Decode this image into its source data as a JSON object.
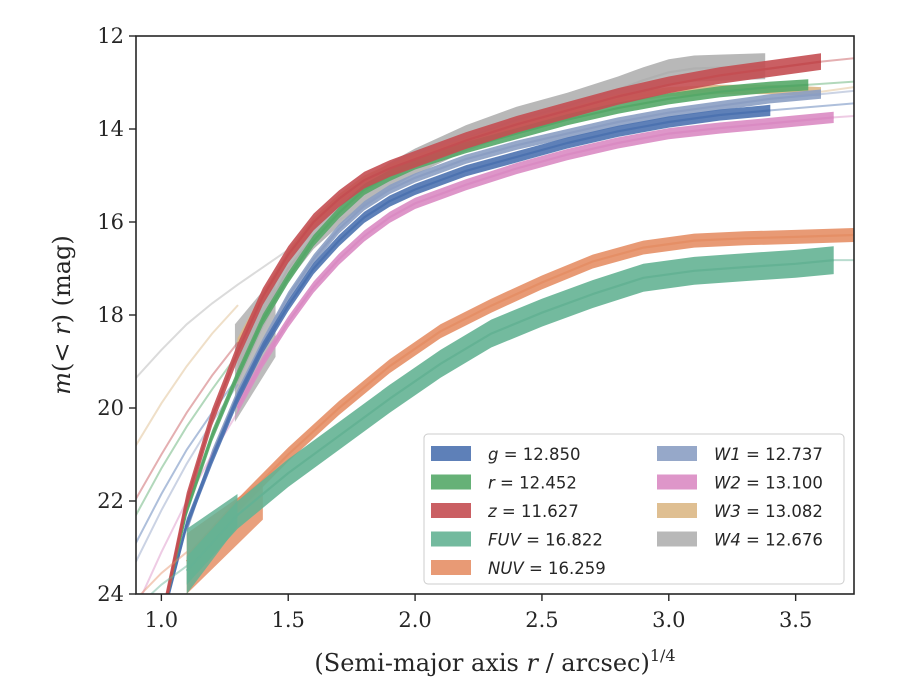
{
  "chart_data": {
    "type": "line",
    "xlabel": {
      "prefix": "(Semi-major axis ",
      "var": "r",
      "suffix": " / arcsec)",
      "sup": "1/4"
    },
    "ylabel": {
      "prefix": "m",
      "middle": "(< ",
      "var": "r",
      "suffix": ") (mag)"
    },
    "xlim": [
      0.9,
      3.73
    ],
    "ylim": [
      24,
      12
    ],
    "y_inverted": true,
    "xticks": [
      "1.0",
      "1.5",
      "2.0",
      "2.5",
      "3.0",
      "3.5"
    ],
    "yticks": [
      "12",
      "14",
      "16",
      "18",
      "20",
      "22",
      "24"
    ],
    "legend_position": "lower-right",
    "legend_columns": 2,
    "series": [
      {
        "name": "g",
        "value_text": " = 12.850",
        "color": "#4c72b0",
        "extrap": [
          [
            0.9,
            22.9
          ],
          [
            1.0,
            21.85
          ],
          [
            1.1,
            20.9
          ],
          [
            1.2,
            20.1
          ],
          [
            1.3,
            19.35
          ]
        ],
        "data": [
          [
            1.0,
            24.6
          ],
          [
            1.1,
            22.5
          ],
          [
            1.2,
            21.1
          ],
          [
            1.3,
            19.8
          ],
          [
            1.4,
            18.7
          ],
          [
            1.5,
            17.8
          ],
          [
            1.6,
            17.0
          ],
          [
            1.7,
            16.4
          ],
          [
            1.8,
            15.9
          ],
          [
            1.9,
            15.55
          ],
          [
            2.0,
            15.3
          ],
          [
            2.2,
            14.9
          ],
          [
            2.4,
            14.6
          ],
          [
            2.6,
            14.3
          ],
          [
            2.8,
            14.05
          ],
          [
            3.0,
            13.85
          ],
          [
            3.2,
            13.7
          ],
          [
            3.4,
            13.6
          ]
        ],
        "extrap_out": [
          [
            3.4,
            13.6
          ],
          [
            3.73,
            13.45
          ]
        ],
        "band": 0.12
      },
      {
        "name": "r",
        "value_text": " = 12.452",
        "color": "#55a868",
        "extrap": [
          [
            0.9,
            22.3
          ],
          [
            1.0,
            21.3
          ],
          [
            1.1,
            20.4
          ],
          [
            1.2,
            19.6
          ],
          [
            1.3,
            18.85
          ]
        ],
        "data": [
          [
            1.0,
            24.6
          ],
          [
            1.1,
            22.2
          ],
          [
            1.2,
            20.6
          ],
          [
            1.3,
            19.3
          ],
          [
            1.4,
            18.1
          ],
          [
            1.5,
            17.2
          ],
          [
            1.6,
            16.4
          ],
          [
            1.7,
            15.8
          ],
          [
            1.8,
            15.3
          ],
          [
            1.9,
            15.0
          ],
          [
            2.0,
            14.75
          ],
          [
            2.2,
            14.4
          ],
          [
            2.4,
            14.1
          ],
          [
            2.6,
            13.8
          ],
          [
            2.8,
            13.55
          ],
          [
            3.0,
            13.35
          ],
          [
            3.2,
            13.2
          ],
          [
            3.4,
            13.1
          ],
          [
            3.55,
            13.05
          ]
        ],
        "extrap_out": [
          [
            3.55,
            13.05
          ],
          [
            3.73,
            12.98
          ]
        ],
        "band": 0.12
      },
      {
        "name": "z",
        "value_text": " = 11.627",
        "color": "#c44e52",
        "extrap": [
          [
            0.9,
            21.95
          ],
          [
            1.0,
            21.0
          ],
          [
            1.1,
            20.1
          ],
          [
            1.2,
            19.3
          ],
          [
            1.3,
            18.6
          ]
        ],
        "data": [
          [
            1.0,
            24.6
          ],
          [
            1.1,
            22.0
          ],
          [
            1.2,
            20.2
          ],
          [
            1.3,
            18.8
          ],
          [
            1.4,
            17.6
          ],
          [
            1.5,
            16.7
          ],
          [
            1.6,
            16.0
          ],
          [
            1.7,
            15.5
          ],
          [
            1.8,
            15.1
          ],
          [
            1.9,
            14.85
          ],
          [
            2.0,
            14.65
          ],
          [
            2.2,
            14.25
          ],
          [
            2.4,
            13.9
          ],
          [
            2.6,
            13.6
          ],
          [
            2.8,
            13.3
          ],
          [
            3.0,
            13.05
          ],
          [
            3.2,
            12.85
          ],
          [
            3.4,
            12.7
          ],
          [
            3.6,
            12.55
          ]
        ],
        "extrap_out": [
          [
            3.6,
            12.55
          ],
          [
            3.73,
            12.48
          ]
        ],
        "band": 0.18
      },
      {
        "name": "FUV",
        "value_text": " = 16.822",
        "color": "#64b294",
        "extrap": [
          [
            0.92,
            24.2
          ],
          [
            1.0,
            23.8
          ],
          [
            1.1,
            23.4
          ]
        ],
        "data": [
          [
            1.1,
            23.5
          ],
          [
            1.3,
            22.3
          ],
          [
            1.5,
            21.4
          ],
          [
            1.7,
            20.6
          ],
          [
            1.9,
            19.8
          ],
          [
            2.1,
            19.05
          ],
          [
            2.3,
            18.4
          ],
          [
            2.5,
            17.95
          ],
          [
            2.7,
            17.55
          ],
          [
            2.9,
            17.2
          ],
          [
            3.1,
            17.05
          ],
          [
            3.3,
            16.97
          ],
          [
            3.5,
            16.9
          ],
          [
            3.65,
            16.82
          ]
        ],
        "extrap_out": [
          [
            3.65,
            16.82
          ],
          [
            3.73,
            16.82
          ]
        ],
        "band": 0.3,
        "wedge": {
          "x": [
            1.1,
            1.3
          ],
          "top": [
            22.6,
            21.85
          ],
          "bottom": [
            24.0,
            22.55
          ]
        }
      },
      {
        "name": "NUV",
        "value_text": " = 16.259",
        "color": "#e58f66",
        "extrap": [
          [
            0.92,
            24.0
          ],
          [
            1.0,
            23.55
          ],
          [
            1.1,
            23.1
          ]
        ],
        "data": [
          [
            1.1,
            23.3
          ],
          [
            1.3,
            22.1
          ],
          [
            1.5,
            21.0
          ],
          [
            1.7,
            20.0
          ],
          [
            1.9,
            19.1
          ],
          [
            2.1,
            18.35
          ],
          [
            2.3,
            17.8
          ],
          [
            2.5,
            17.3
          ],
          [
            2.7,
            16.85
          ],
          [
            2.9,
            16.55
          ],
          [
            3.1,
            16.4
          ],
          [
            3.3,
            16.35
          ],
          [
            3.5,
            16.32
          ],
          [
            3.73,
            16.28
          ]
        ],
        "extrap_out": [],
        "band": 0.15,
        "wedge": {
          "x": [
            1.1,
            1.4
          ],
          "top": [
            22.7,
            21.55
          ],
          "bottom": [
            24.0,
            22.4
          ]
        }
      },
      {
        "name": "W1",
        "value_text": " = 12.737",
        "color": "#8b9ec3",
        "extrap": [
          [
            0.9,
            23.3
          ],
          [
            1.0,
            22.2
          ],
          [
            1.1,
            21.2
          ],
          [
            1.2,
            20.3
          ],
          [
            1.3,
            19.5
          ]
        ],
        "data": [
          [
            1.1,
            22.6
          ],
          [
            1.2,
            21.0
          ],
          [
            1.3,
            19.7
          ],
          [
            1.4,
            18.6
          ],
          [
            1.5,
            17.6
          ],
          [
            1.6,
            16.8
          ],
          [
            1.7,
            16.15
          ],
          [
            1.8,
            15.65
          ],
          [
            1.9,
            15.3
          ],
          [
            2.0,
            15.05
          ],
          [
            2.2,
            14.65
          ],
          [
            2.4,
            14.35
          ],
          [
            2.6,
            14.1
          ],
          [
            2.8,
            13.85
          ],
          [
            3.0,
            13.65
          ],
          [
            3.2,
            13.5
          ],
          [
            3.4,
            13.35
          ],
          [
            3.6,
            13.25
          ]
        ],
        "extrap_out": [
          [
            3.6,
            13.25
          ],
          [
            3.73,
            13.18
          ]
        ],
        "band": 0.1
      },
      {
        "name": "W2",
        "value_text": " = 13.100",
        "color": "#da8bc3",
        "extrap": [
          [
            0.9,
            24.3
          ],
          [
            1.0,
            23.1
          ],
          [
            1.1,
            22.0
          ],
          [
            1.2,
            21.0
          ],
          [
            1.3,
            20.1
          ]
        ],
        "data": [
          [
            1.3,
            20.0
          ],
          [
            1.4,
            19.0
          ],
          [
            1.5,
            18.15
          ],
          [
            1.6,
            17.4
          ],
          [
            1.7,
            16.8
          ],
          [
            1.8,
            16.3
          ],
          [
            1.9,
            15.9
          ],
          [
            2.0,
            15.6
          ],
          [
            2.2,
            15.2
          ],
          [
            2.4,
            14.85
          ],
          [
            2.6,
            14.55
          ],
          [
            2.8,
            14.3
          ],
          [
            3.0,
            14.1
          ],
          [
            3.2,
            13.98
          ],
          [
            3.4,
            13.88
          ],
          [
            3.65,
            13.75
          ]
        ],
        "extrap_out": [
          [
            3.65,
            13.75
          ],
          [
            3.73,
            13.72
          ]
        ],
        "band": 0.12
      },
      {
        "name": "W3",
        "value_text": " = 13.082",
        "color": "#dbb886",
        "extrap": [
          [
            0.9,
            20.8
          ],
          [
            1.0,
            19.9
          ],
          [
            1.1,
            19.1
          ],
          [
            1.2,
            18.4
          ],
          [
            1.3,
            17.8
          ]
        ],
        "data": [
          [
            1.3,
            18.6
          ],
          [
            1.4,
            17.6
          ],
          [
            1.5,
            16.7
          ],
          [
            1.6,
            16.0
          ],
          [
            1.7,
            15.5
          ],
          [
            1.8,
            15.1
          ],
          [
            1.9,
            14.85
          ],
          [
            2.0,
            14.65
          ],
          [
            2.2,
            14.3
          ],
          [
            2.4,
            13.95
          ],
          [
            2.6,
            13.65
          ],
          [
            2.8,
            13.35
          ],
          [
            3.0,
            13.2
          ],
          [
            3.2,
            13.15
          ],
          [
            3.4,
            13.15
          ],
          [
            3.6,
            13.2
          ]
        ],
        "extrap_out": [
          [
            3.6,
            13.2
          ],
          [
            3.73,
            13.1
          ]
        ],
        "band": 0.1
      },
      {
        "name": "W4",
        "value_text": " = 12.676",
        "color": "#b0b0b0",
        "extrap": [
          [
            0.9,
            19.35
          ],
          [
            1.0,
            18.75
          ],
          [
            1.1,
            18.2
          ],
          [
            1.2,
            17.75
          ],
          [
            1.3,
            17.35
          ],
          [
            1.5,
            16.6
          ],
          [
            1.7,
            15.95
          ],
          [
            1.85,
            15.55
          ]
        ],
        "data": [
          [
            1.3,
            19.2
          ],
          [
            1.4,
            18.0
          ],
          [
            1.5,
            17.0
          ],
          [
            1.6,
            16.3
          ],
          [
            1.7,
            15.8
          ],
          [
            1.8,
            15.35
          ],
          [
            1.9,
            15.0
          ],
          [
            2.0,
            14.7
          ],
          [
            2.2,
            14.2
          ],
          [
            2.4,
            13.8
          ],
          [
            2.6,
            13.5
          ],
          [
            2.8,
            13.15
          ],
          [
            2.9,
            12.95
          ],
          [
            3.0,
            12.78
          ],
          [
            3.1,
            12.7
          ],
          [
            3.2,
            12.68
          ],
          [
            3.38,
            12.65
          ]
        ],
        "extrap_out": [],
        "band": 0.28,
        "wedge": {
          "x": [
            1.29,
            1.45
          ],
          "top": [
            18.2,
            17.15
          ],
          "bottom": [
            20.3,
            18.9
          ]
        }
      }
    ]
  }
}
